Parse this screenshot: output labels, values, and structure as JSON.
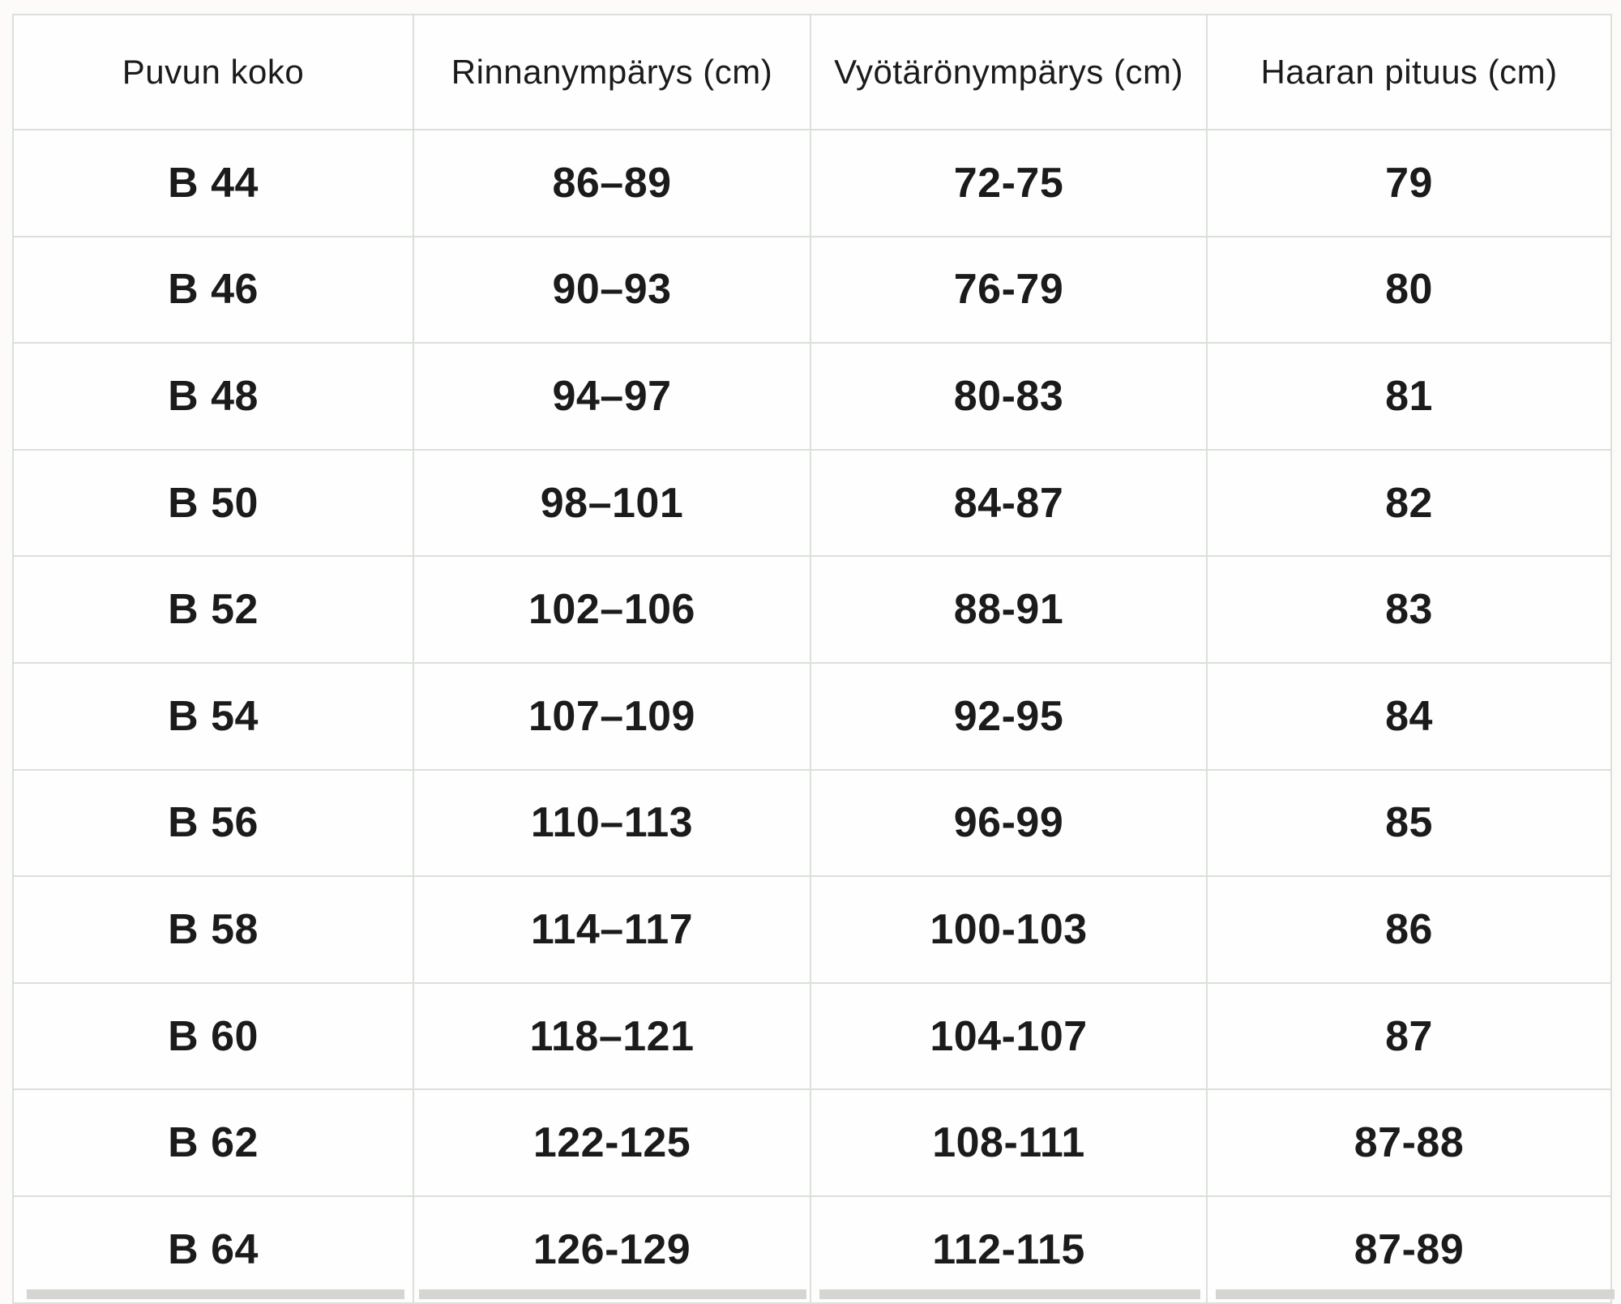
{
  "page": {
    "background_color": "#fcfbf9",
    "text_color": "#1b1b1b",
    "table_border_color": "#d9e1d8"
  },
  "table": {
    "headers": [
      "Puvun koko",
      "Rinnanympärys (cm)",
      "Vyötärönympärys (cm)",
      "Haaran pituus (cm)"
    ],
    "rows": [
      {
        "size": "B 44",
        "chest": "86–89",
        "waist": "72-75",
        "inseam": "79"
      },
      {
        "size": "B 46",
        "chest": "90–93",
        "waist": "76-79",
        "inseam": "80"
      },
      {
        "size": "B 48",
        "chest": "94–97",
        "waist": "80-83",
        "inseam": "81"
      },
      {
        "size": "B 50",
        "chest": "98–101",
        "waist": "84-87",
        "inseam": "82"
      },
      {
        "size": "B 52",
        "chest": "102–106",
        "waist": "88-91",
        "inseam": "83"
      },
      {
        "size": "B 54",
        "chest": "107–109",
        "waist": "92-95",
        "inseam": "84"
      },
      {
        "size": "B 56",
        "chest": "110–113",
        "waist": "96-99",
        "inseam": "85"
      },
      {
        "size": "B 58",
        "chest": "114–117",
        "waist": "100-103",
        "inseam": "86"
      },
      {
        "size": "B 60",
        "chest": "118–121",
        "waist": "104-107",
        "inseam": "87"
      },
      {
        "size": "B 62",
        "chest": "122-125",
        "waist": "108-111",
        "inseam": "87-88"
      },
      {
        "size": "B 64",
        "chest": "126-129",
        "waist": "112-115",
        "inseam": "87-89"
      }
    ]
  }
}
